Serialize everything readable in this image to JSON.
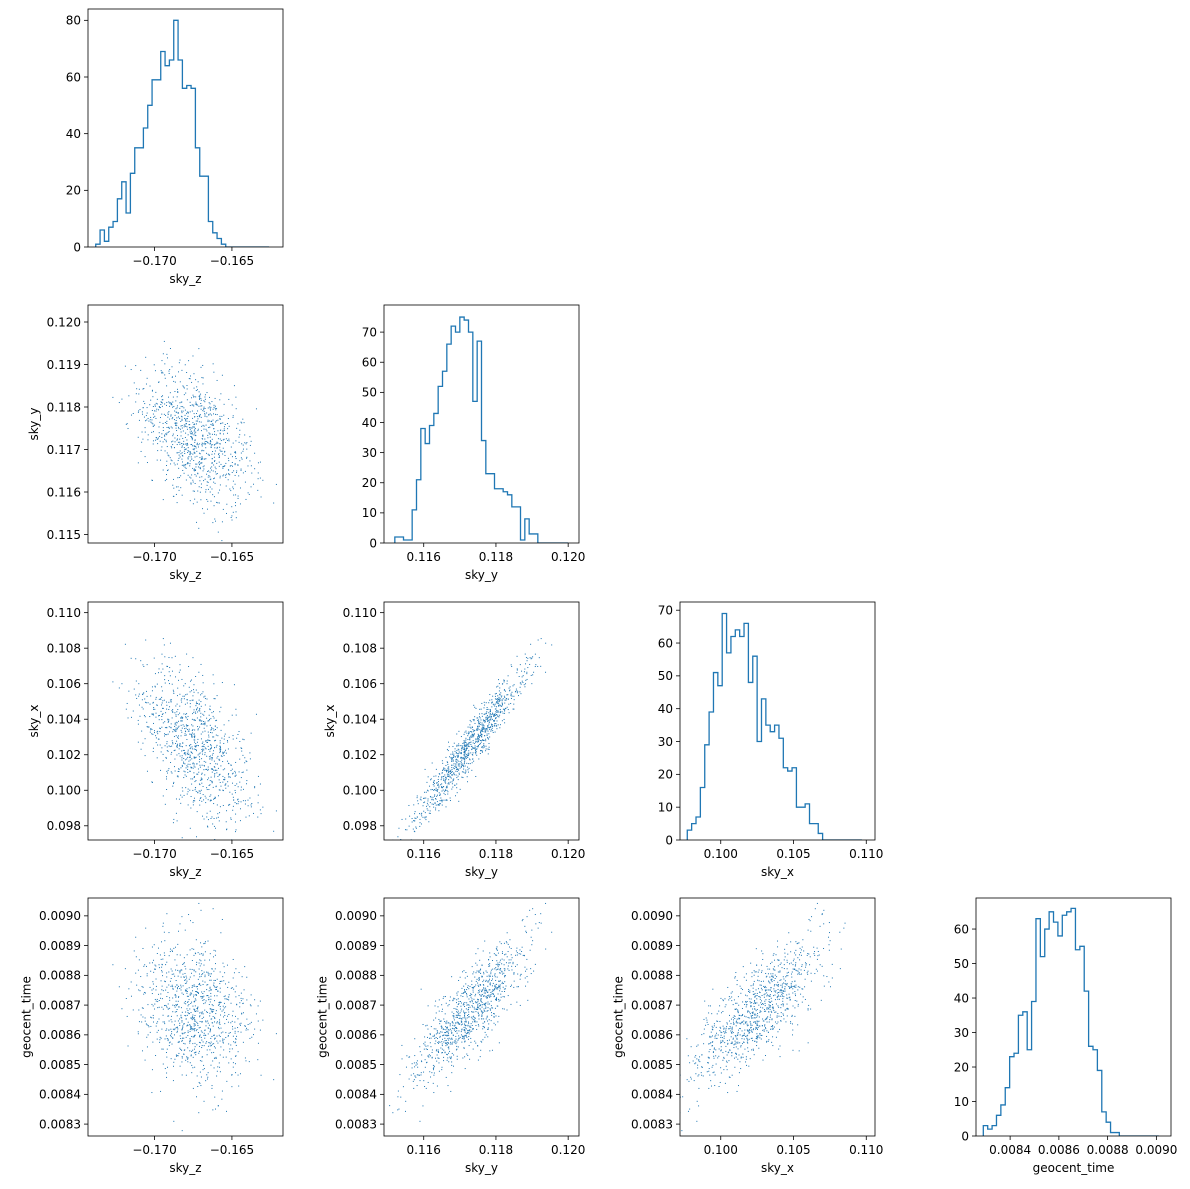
{
  "colors": {
    "series": "#1f77b4",
    "axes": "#000000",
    "background": "#ffffff"
  },
  "chart_data": [
    {
      "type": "histogram",
      "row": 0,
      "col": 0,
      "xvar": "sky_z",
      "xlabel": "sky_z",
      "ylabel": "",
      "xlim": [
        -0.1743,
        -0.1617
      ],
      "ylim": [
        0,
        84
      ],
      "xticks": [
        -0.17,
        -0.165
      ],
      "xtick_labels": [
        "−0.170",
        "−0.165"
      ],
      "yticks": [
        0,
        20,
        40,
        60,
        80
      ],
      "ytick_labels": [
        "0",
        "20",
        "40",
        "60",
        "80"
      ],
      "bin_edges": [
        -0.1738,
        -0.17352,
        -0.17324,
        -0.17296,
        -0.17268,
        -0.1724,
        -0.17212,
        -0.17184,
        -0.17156,
        -0.17128,
        -0.171,
        -0.17072,
        -0.17044,
        -0.17016,
        -0.16988,
        -0.1696,
        -0.16932,
        -0.16904,
        -0.16876,
        -0.16848,
        -0.1682,
        -0.16792,
        -0.16764,
        -0.16736,
        -0.16708,
        -0.1668,
        -0.16652,
        -0.16624,
        -0.16596,
        -0.16568,
        -0.1654,
        -0.16512,
        -0.16484,
        -0.16456,
        -0.16428,
        -0.164,
        -0.16372,
        -0.16344,
        -0.16316,
        -0.16288,
        -0.1626
      ],
      "counts": [
        1,
        6,
        2,
        7,
        9,
        17,
        23,
        12,
        26,
        35,
        35,
        42,
        50,
        59,
        59,
        69,
        64,
        66,
        80,
        66,
        56,
        57,
        56,
        35,
        25,
        25,
        9,
        5,
        3,
        1,
        0,
        0,
        0,
        0,
        0,
        0,
        0,
        0,
        0,
        0
      ]
    },
    {
      "type": "scatter",
      "row": 1,
      "col": 0,
      "xvar": "sky_z",
      "yvar": "sky_y",
      "xlabel": "sky_z",
      "ylabel": "sky_y",
      "xlim": [
        -0.1743,
        -0.1617
      ],
      "ylim": [
        0.1148,
        0.1204
      ],
      "xticks": [
        -0.17,
        -0.165
      ],
      "xtick_labels": [
        "−0.170",
        "−0.165"
      ],
      "yticks": [
        0.115,
        0.116,
        0.117,
        0.118,
        0.119,
        0.12
      ],
      "ytick_labels": [
        "0.115",
        "0.116",
        "0.117",
        "0.118",
        "0.119",
        "0.120"
      ]
    },
    {
      "type": "histogram",
      "row": 1,
      "col": 1,
      "xvar": "sky_y",
      "xlabel": "sky_y",
      "ylabel": "",
      "xlim": [
        0.1149,
        0.1203
      ],
      "ylim": [
        0,
        79
      ],
      "xticks": [
        0.116,
        0.118,
        0.12
      ],
      "xtick_labels": [
        "0.116",
        "0.118",
        "0.120"
      ],
      "yticks": [
        0,
        10,
        20,
        30,
        40,
        50,
        60,
        70
      ],
      "ytick_labels": [
        "0",
        "10",
        "20",
        "30",
        "40",
        "50",
        "60",
        "70"
      ],
      "bin_edges": [
        0.1152,
        0.11532,
        0.11544,
        0.11556,
        0.11568,
        0.1158,
        0.11592,
        0.11604,
        0.11616,
        0.11628,
        0.1164,
        0.11652,
        0.11664,
        0.11676,
        0.11688,
        0.117,
        0.11712,
        0.11724,
        0.11736,
        0.11748,
        0.1176,
        0.11772,
        0.11784,
        0.11796,
        0.11808,
        0.1182,
        0.11832,
        0.11844,
        0.11856,
        0.11868,
        0.1188,
        0.11892,
        0.11904,
        0.11916,
        0.11928,
        0.1194,
        0.11952,
        0.11964,
        0.11976,
        0.11988,
        0.12
      ],
      "counts": [
        2,
        2,
        1,
        1,
        11,
        21,
        38,
        33,
        39,
        43,
        52,
        57,
        66,
        72,
        70,
        75,
        74,
        70,
        47,
        67,
        34,
        23,
        23,
        18,
        18,
        17,
        16,
        12,
        12,
        1,
        8,
        3,
        3,
        0,
        0,
        0,
        0,
        0,
        0,
        0
      ]
    },
    {
      "type": "scatter",
      "row": 2,
      "col": 0,
      "xvar": "sky_z",
      "yvar": "sky_x",
      "xlabel": "sky_z",
      "ylabel": "sky_x",
      "xlim": [
        -0.1743,
        -0.1617
      ],
      "ylim": [
        0.0972,
        0.1106
      ],
      "xticks": [
        -0.17,
        -0.165
      ],
      "xtick_labels": [
        "−0.170",
        "−0.165"
      ],
      "yticks": [
        0.098,
        0.1,
        0.102,
        0.104,
        0.106,
        0.108,
        0.11
      ],
      "ytick_labels": [
        "0.098",
        "0.100",
        "0.102",
        "0.104",
        "0.106",
        "0.108",
        "0.110"
      ]
    },
    {
      "type": "scatter",
      "row": 2,
      "col": 1,
      "xvar": "sky_y",
      "yvar": "sky_x",
      "xlabel": "sky_y",
      "ylabel": "sky_x",
      "xlim": [
        0.1149,
        0.1203
      ],
      "ylim": [
        0.0972,
        0.1106
      ],
      "xticks": [
        0.116,
        0.118,
        0.12
      ],
      "xtick_labels": [
        "0.116",
        "0.118",
        "0.120"
      ],
      "yticks": [
        0.098,
        0.1,
        0.102,
        0.104,
        0.106,
        0.108,
        0.11
      ],
      "ytick_labels": [
        "0.098",
        "0.100",
        "0.102",
        "0.104",
        "0.106",
        "0.108",
        "0.110"
      ]
    },
    {
      "type": "histogram",
      "row": 2,
      "col": 2,
      "xvar": "sky_x",
      "xlabel": "sky_x",
      "ylabel": "",
      "xlim": [
        0.0972,
        0.1106
      ],
      "ylim": [
        0,
        72.5
      ],
      "xticks": [
        0.1,
        0.105,
        0.11
      ],
      "xtick_labels": [
        "0.100",
        "0.105",
        "0.110"
      ],
      "yticks": [
        0,
        10,
        20,
        30,
        40,
        50,
        60,
        70
      ],
      "ytick_labels": [
        "0",
        "10",
        "20",
        "30",
        "40",
        "50",
        "60",
        "70"
      ],
      "bin_edges": [
        0.0977,
        0.098,
        0.0983,
        0.0986,
        0.0989,
        0.0992,
        0.0995,
        0.0998,
        0.1001,
        0.1004,
        0.1007,
        0.101,
        0.1013,
        0.1016,
        0.1019,
        0.1022,
        0.1025,
        0.1028,
        0.1031,
        0.1034,
        0.1037,
        0.104,
        0.1043,
        0.1046,
        0.1049,
        0.1052,
        0.1055,
        0.1058,
        0.1061,
        0.1064,
        0.1067,
        0.107,
        0.1073,
        0.1076,
        0.1079,
        0.1082,
        0.1085,
        0.1088,
        0.1091,
        0.1094,
        0.1097
      ],
      "counts": [
        3,
        5,
        7,
        16,
        29,
        39,
        51,
        47,
        69,
        57,
        62,
        64,
        62,
        66,
        48,
        56,
        30,
        43,
        35,
        33,
        35,
        31,
        22,
        21,
        22,
        10,
        10,
        11,
        5,
        5,
        2,
        0,
        0,
        0,
        0,
        0,
        0,
        0,
        0,
        0
      ]
    },
    {
      "type": "scatter",
      "row": 3,
      "col": 0,
      "xvar": "sky_z",
      "yvar": "geocent_time",
      "xlabel": "sky_z",
      "ylabel": "geocent_time",
      "xlim": [
        -0.1743,
        -0.1617
      ],
      "ylim": [
        0.00826,
        0.00906
      ],
      "xticks": [
        -0.17,
        -0.165
      ],
      "xtick_labels": [
        "−0.170",
        "−0.165"
      ],
      "yticks": [
        0.0083,
        0.0084,
        0.0085,
        0.0086,
        0.0087,
        0.0088,
        0.0089,
        0.009
      ],
      "ytick_labels": [
        "0.0083",
        "0.0084",
        "0.0085",
        "0.0086",
        "0.0087",
        "0.0088",
        "0.0089",
        "0.0090"
      ]
    },
    {
      "type": "scatter",
      "row": 3,
      "col": 1,
      "xvar": "sky_y",
      "yvar": "geocent_time",
      "xlabel": "sky_y",
      "ylabel": "geocent_time",
      "xlim": [
        0.1149,
        0.1203
      ],
      "ylim": [
        0.00826,
        0.00906
      ],
      "xticks": [
        0.116,
        0.118,
        0.12
      ],
      "xtick_labels": [
        "0.116",
        "0.118",
        "0.120"
      ],
      "yticks": [
        0.0083,
        0.0084,
        0.0085,
        0.0086,
        0.0087,
        0.0088,
        0.0089,
        0.009
      ],
      "ytick_labels": [
        "0.0083",
        "0.0084",
        "0.0085",
        "0.0086",
        "0.0087",
        "0.0088",
        "0.0089",
        "0.0090"
      ]
    },
    {
      "type": "scatter",
      "row": 3,
      "col": 2,
      "xvar": "sky_x",
      "yvar": "geocent_time",
      "xlabel": "sky_x",
      "ylabel": "geocent_time",
      "xlim": [
        0.0972,
        0.1106
      ],
      "ylim": [
        0.00826,
        0.00906
      ],
      "xticks": [
        0.1,
        0.105,
        0.11
      ],
      "xtick_labels": [
        "0.100",
        "0.105",
        "0.110"
      ],
      "yticks": [
        0.0083,
        0.0084,
        0.0085,
        0.0086,
        0.0087,
        0.0088,
        0.0089,
        0.009
      ],
      "ytick_labels": [
        "0.0083",
        "0.0084",
        "0.0085",
        "0.0086",
        "0.0087",
        "0.0088",
        "0.0089",
        "0.0090"
      ]
    },
    {
      "type": "histogram",
      "row": 3,
      "col": 3,
      "xvar": "geocent_time",
      "xlabel": "geocent_time",
      "ylabel": "",
      "xlim": [
        0.00826,
        0.00906
      ],
      "ylim": [
        0,
        69
      ],
      "xticks": [
        0.0084,
        0.0086,
        0.0088,
        0.009
      ],
      "xtick_labels": [
        "0.0084",
        "0.0086",
        "0.0088",
        "0.0090"
      ],
      "yticks": [
        0,
        10,
        20,
        30,
        40,
        50,
        60
      ],
      "ytick_labels": [
        "0",
        "10",
        "20",
        "30",
        "40",
        "50",
        "60"
      ],
      "bin_edges": [
        0.00829,
        0.008308,
        0.008326,
        0.008344,
        0.008362,
        0.00838,
        0.008398,
        0.008416,
        0.008434,
        0.008452,
        0.00847,
        0.008488,
        0.008506,
        0.008524,
        0.008542,
        0.00856,
        0.008578,
        0.008596,
        0.008614,
        0.008632,
        0.00865,
        0.008668,
        0.008686,
        0.008704,
        0.008722,
        0.00874,
        0.008758,
        0.008776,
        0.008794,
        0.008812,
        0.00883,
        0.008848,
        0.008866,
        0.008884,
        0.008902,
        0.00892,
        0.008938,
        0.008956,
        0.008974,
        0.008992,
        0.00901
      ],
      "counts": [
        3,
        2,
        3,
        6,
        9,
        14,
        23,
        24,
        35,
        36,
        25,
        39,
        63,
        52,
        60,
        65,
        62,
        58,
        64,
        65,
        66,
        54,
        55,
        42,
        26,
        25,
        19,
        7,
        4,
        1,
        1,
        0,
        0,
        0,
        0,
        0,
        0,
        0,
        0,
        0
      ]
    }
  ]
}
